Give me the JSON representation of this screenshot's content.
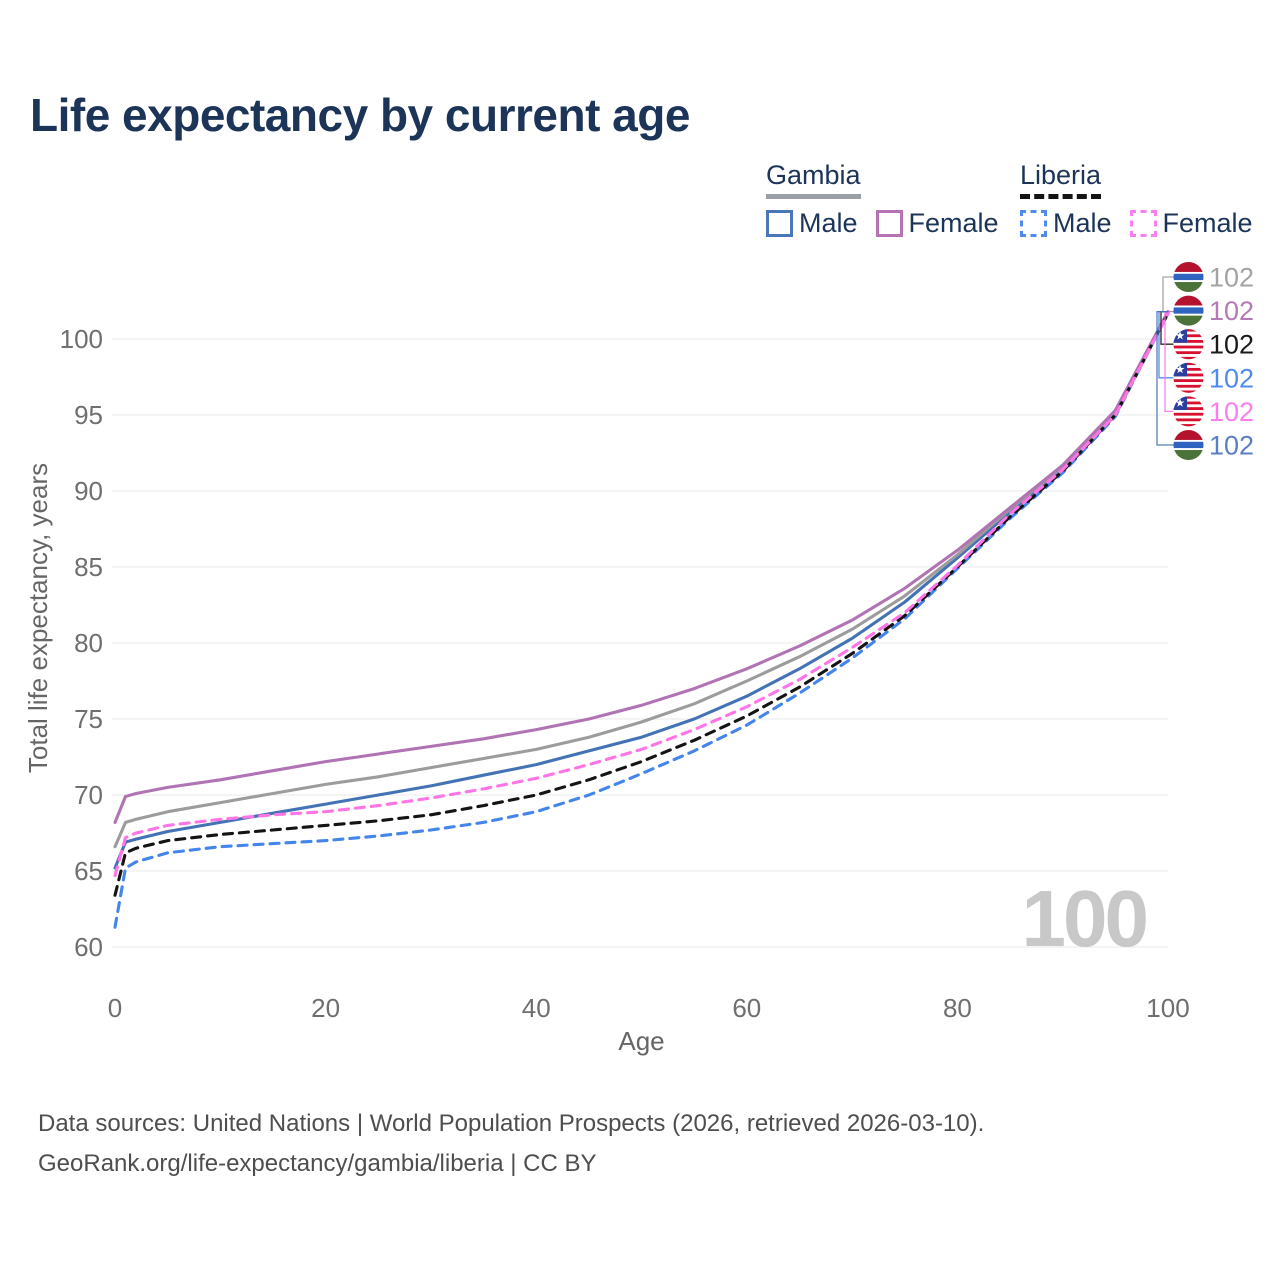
{
  "title": "Life expectancy by current age",
  "watermark": "100",
  "legend": {
    "groups": [
      {
        "country": "Gambia",
        "underline": {
          "style": "solid",
          "color": "#9aa0a6"
        },
        "items": [
          {
            "label": "Male",
            "color": "#4a77b8",
            "dash": false
          },
          {
            "label": "Female",
            "color": "#b573b4",
            "dash": false
          }
        ]
      },
      {
        "country": "Liberia",
        "underline": {
          "style": "dashed",
          "color": "#141414"
        },
        "items": [
          {
            "label": "Male",
            "color": "#4e8bf0",
            "dash": true
          },
          {
            "label": "Female",
            "color": "#fb7df0",
            "dash": true
          }
        ]
      }
    ]
  },
  "footer": {
    "line1": "Data sources: United Nations | World Population Prospects (2026, retrieved 2026-03-10).",
    "line2": "GeoRank.org/life-expectancy/gambia/liberia | CC BY"
  },
  "chart_data": {
    "type": "line",
    "title": "Life expectancy by current age",
    "xlabel": "Age",
    "ylabel": "Total life expectancy, years",
    "xlim": [
      0,
      100
    ],
    "ylim": [
      58.5,
      103
    ],
    "xticks": [
      0,
      20,
      40,
      60,
      80,
      100
    ],
    "yticks": [
      60,
      65,
      70,
      75,
      80,
      85,
      90,
      95,
      100
    ],
    "grid": "horizontal",
    "legend_position": "top-right",
    "x": [
      0,
      1,
      2,
      5,
      10,
      15,
      20,
      25,
      30,
      35,
      40,
      45,
      50,
      55,
      60,
      65,
      70,
      75,
      80,
      85,
      90,
      95,
      100
    ],
    "series": [
      {
        "id": "gambia-male",
        "name": "Gambia Male",
        "color": "#4473b5",
        "dash": false,
        "values": [
          65.2,
          66.9,
          67.1,
          67.6,
          68.2,
          68.8,
          69.4,
          70.0,
          70.6,
          71.3,
          72.0,
          72.9,
          73.8,
          75.0,
          76.5,
          78.3,
          80.3,
          82.7,
          85.6,
          88.6,
          91.5,
          95.1,
          101.7
        ]
      },
      {
        "id": "gambia-both",
        "name": "Gambia Both sexes",
        "color": "#9c9c9c",
        "dash": false,
        "values": [
          66.6,
          68.2,
          68.4,
          68.9,
          69.5,
          70.1,
          70.7,
          71.2,
          71.8,
          72.4,
          73.0,
          73.8,
          74.8,
          76.0,
          77.5,
          79.1,
          80.9,
          83.1,
          85.8,
          88.8,
          91.6,
          95.2,
          101.8
        ]
      },
      {
        "id": "gambia-female",
        "name": "Gambia Female",
        "color": "#b073b3",
        "dash": false,
        "values": [
          68.2,
          69.9,
          70.1,
          70.5,
          71.0,
          71.6,
          72.2,
          72.7,
          73.2,
          73.7,
          74.3,
          75.0,
          75.9,
          77.0,
          78.3,
          79.8,
          81.5,
          83.6,
          86.1,
          88.9,
          91.7,
          95.3,
          101.8
        ]
      },
      {
        "id": "liberia-male",
        "name": "Liberia Male",
        "color": "#4485ea",
        "dash": true,
        "values": [
          61.3,
          65.2,
          65.6,
          66.2,
          66.6,
          66.8,
          67.0,
          67.3,
          67.7,
          68.2,
          68.9,
          70.0,
          71.4,
          72.9,
          74.6,
          76.7,
          79.0,
          81.6,
          84.9,
          88.2,
          91.2,
          94.9,
          101.7
        ]
      },
      {
        "id": "liberia-both",
        "name": "Liberia Both sexes",
        "color": "#141414",
        "dash": true,
        "values": [
          63.4,
          66.2,
          66.5,
          67.0,
          67.4,
          67.7,
          68.0,
          68.3,
          68.7,
          69.3,
          70.0,
          71.0,
          72.2,
          73.6,
          75.2,
          77.1,
          79.3,
          81.8,
          85.0,
          88.3,
          91.3,
          95.0,
          101.7
        ]
      },
      {
        "id": "liberia-female",
        "name": "Liberia Female",
        "color": "#ff74e6",
        "dash": true,
        "values": [
          64.7,
          67.2,
          67.5,
          68.0,
          68.4,
          68.7,
          68.9,
          69.3,
          69.8,
          70.4,
          71.1,
          72.0,
          73.0,
          74.3,
          75.8,
          77.6,
          79.7,
          82.0,
          85.1,
          88.5,
          91.4,
          95.0,
          101.7
        ]
      }
    ],
    "end_labels": [
      {
        "id": "gambia-both",
        "flag": "gambia",
        "value": "102",
        "color": "#9c9c9c",
        "text_color": "#a3a3a3",
        "bend": 1163
      },
      {
        "id": "gambia-female",
        "flag": "gambia",
        "value": "102",
        "color": "#b073b3",
        "text_color": "#b47ab8",
        "bend": 1168
      },
      {
        "id": "liberia-both",
        "flag": "liberia",
        "value": "102",
        "color": "#141414",
        "text_color": "#1a1a1a",
        "bend": 1161
      },
      {
        "id": "liberia-male",
        "flag": "liberia",
        "value": "102",
        "color": "#4485ea",
        "text_color": "#4e8bf0",
        "bend": 1159
      },
      {
        "id": "liberia-female",
        "flag": "liberia",
        "value": "102",
        "color": "#ff74e6",
        "text_color": "#fb7df0",
        "bend": 1165
      },
      {
        "id": "gambia-male",
        "flag": "gambia",
        "value": "102",
        "color": "#4473b5",
        "text_color": "#5a7fc4",
        "bend": 1157
      }
    ]
  }
}
